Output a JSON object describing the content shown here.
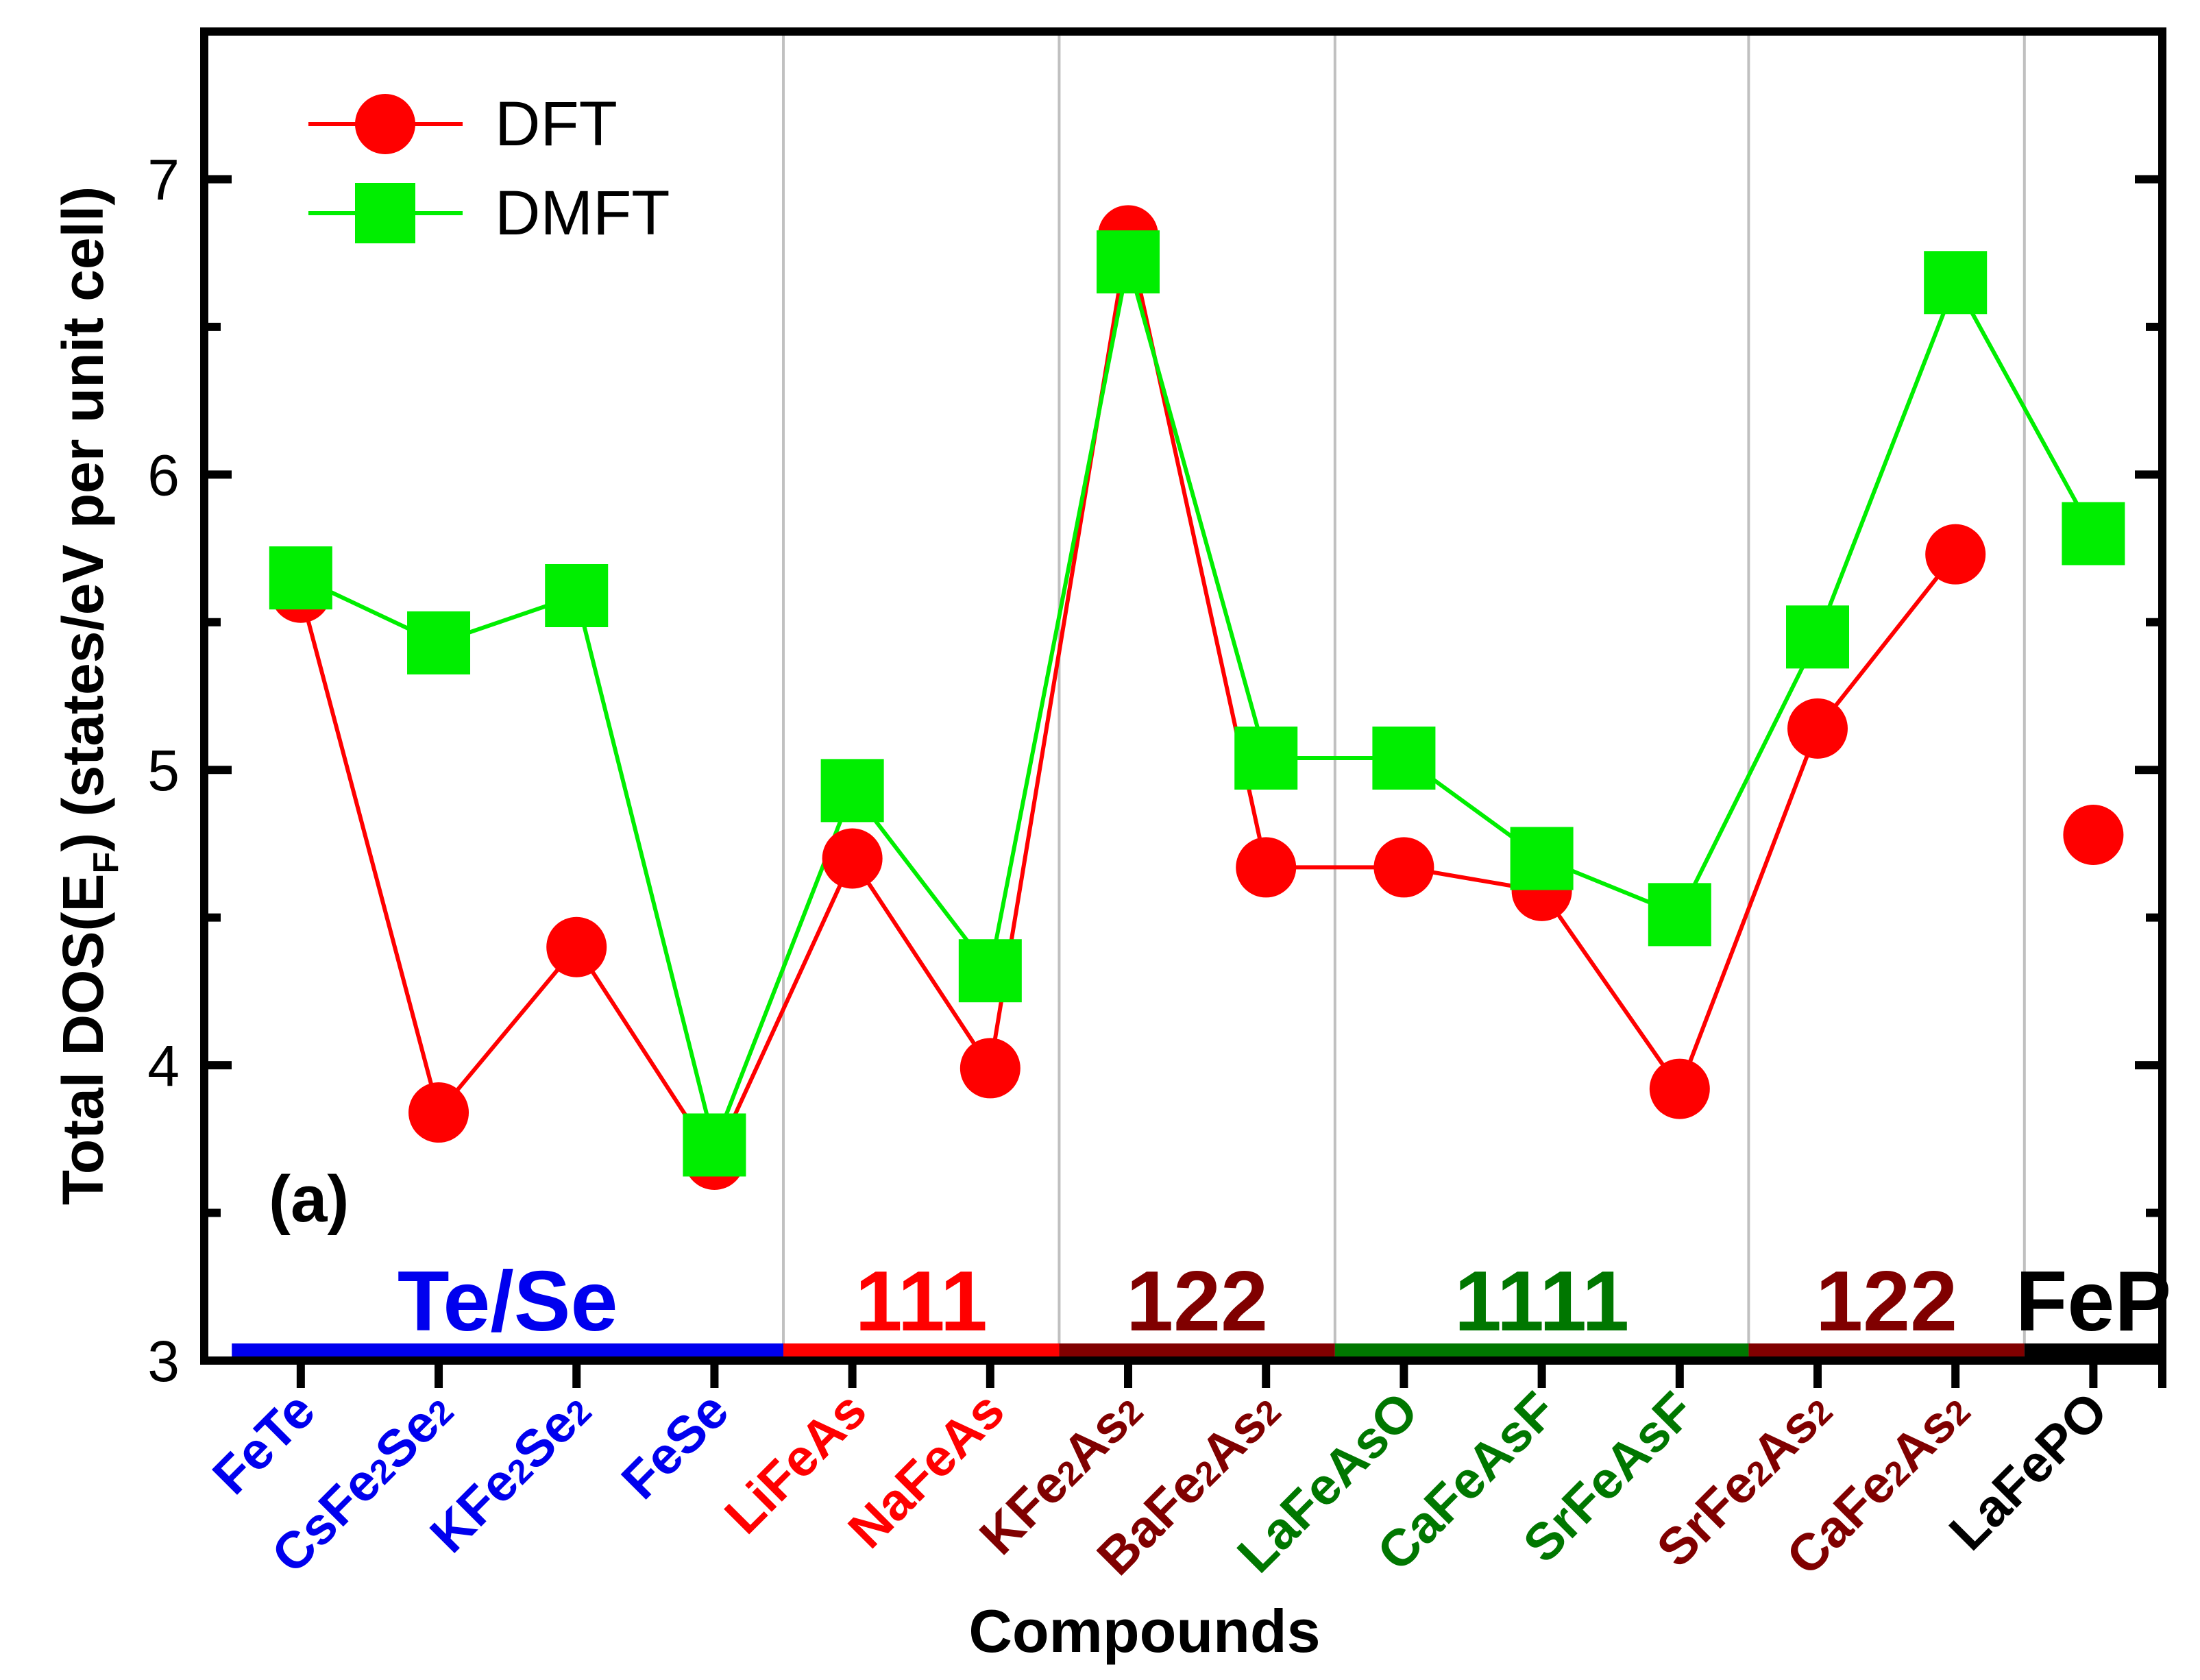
{
  "chart_data": {
    "type": "line",
    "xlabel": "Compounds",
    "ylabel": "Total DOS(E_F) (states/eV per unit cell)",
    "ylabel_parts": {
      "main": "Total DOS(E",
      "sub": "F",
      "rest": ") (states/eV per unit cell)"
    },
    "ylim": [
      3,
      7.5
    ],
    "yticks": [
      "3",
      "4",
      "5",
      "6",
      "7"
    ],
    "grid": false,
    "legend_position": "top-left",
    "panel_label": "(a)",
    "categories": [
      {
        "parts": [
          {
            "t": "FeTe"
          }
        ],
        "group": "Te/Se"
      },
      {
        "parts": [
          {
            "t": "CsFe"
          },
          {
            "t": "2",
            "sub": true
          },
          {
            "t": "Se"
          },
          {
            "t": "2",
            "sub": true
          }
        ],
        "group": "Te/Se"
      },
      {
        "parts": [
          {
            "t": "KFe"
          },
          {
            "t": "2",
            "sub": true
          },
          {
            "t": "Se"
          },
          {
            "t": "2",
            "sub": true
          }
        ],
        "group": "Te/Se"
      },
      {
        "parts": [
          {
            "t": "FeSe"
          }
        ],
        "group": "Te/Se"
      },
      {
        "parts": [
          {
            "t": "LiFeAs"
          }
        ],
        "group": "111"
      },
      {
        "parts": [
          {
            "t": "NaFeAs"
          }
        ],
        "group": "111"
      },
      {
        "parts": [
          {
            "t": "KFe"
          },
          {
            "t": "2",
            "sub": true
          },
          {
            "t": "As"
          },
          {
            "t": "2",
            "sub": true
          }
        ],
        "group": "122a"
      },
      {
        "parts": [
          {
            "t": "BaFe"
          },
          {
            "t": "2",
            "sub": true
          },
          {
            "t": "As"
          },
          {
            "t": "2",
            "sub": true
          }
        ],
        "group": "122a"
      },
      {
        "parts": [
          {
            "t": "LaFeAsO"
          }
        ],
        "group": "1111"
      },
      {
        "parts": [
          {
            "t": "CaFeAsF"
          }
        ],
        "group": "1111"
      },
      {
        "parts": [
          {
            "t": "SrFeAsF"
          }
        ],
        "group": "1111"
      },
      {
        "parts": [
          {
            "t": "SrFe"
          },
          {
            "t": "2",
            "sub": true
          },
          {
            "t": "As"
          },
          {
            "t": "2",
            "sub": true
          }
        ],
        "group": "122b"
      },
      {
        "parts": [
          {
            "t": "CaFe"
          },
          {
            "t": "2",
            "sub": true
          },
          {
            "t": "As"
          },
          {
            "t": "2",
            "sub": true
          }
        ],
        "group": "122b"
      },
      {
        "parts": [
          {
            "t": "LaFePO"
          }
        ],
        "group": "FeP"
      }
    ],
    "groups": [
      {
        "id": "Te/Se",
        "label": "Te/Se",
        "color": "#0000ee",
        "start": -0.5,
        "end": 3.5
      },
      {
        "id": "111",
        "label": "111",
        "color": "#ff0000",
        "start": 3.5,
        "end": 5.5
      },
      {
        "id": "122a",
        "label": "122",
        "color": "#800000",
        "start": 5.5,
        "end": 7.5
      },
      {
        "id": "1111",
        "label": "1111",
        "color": "#007700",
        "start": 7.5,
        "end": 10.5
      },
      {
        "id": "122b",
        "label": "122",
        "color": "#800000",
        "start": 10.5,
        "end": 12.5
      },
      {
        "id": "FeP",
        "label": "FeP",
        "color": "#000000",
        "start": 12.5,
        "end": 13.5
      }
    ],
    "separators": [
      3.5,
      5.5,
      7.5,
      10.5,
      12.5
    ],
    "series": [
      {
        "name": "DFT",
        "color": "#ff0000",
        "marker": "circle",
        "values": [
          5.6,
          3.84,
          4.4,
          3.68,
          4.7,
          3.99,
          6.81,
          4.67,
          4.67,
          4.59,
          3.92,
          5.14,
          5.73,
          4.78
        ],
        "connect_until": 12
      },
      {
        "name": "DMFT",
        "color": "#00ee00",
        "marker": "square",
        "values": [
          5.65,
          5.43,
          5.59,
          3.73,
          4.93,
          4.32,
          6.72,
          5.04,
          5.04,
          4.7,
          4.51,
          5.45,
          6.65,
          5.8
        ],
        "connect_until": 13
      }
    ]
  }
}
